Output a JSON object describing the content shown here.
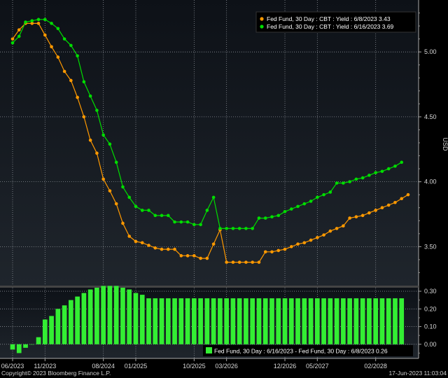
{
  "chart_data": [
    {
      "type": "line",
      "ylabel": "USD",
      "ylim": [
        3.2,
        5.4
      ],
      "yticks": [
        "5.00",
        "4.50",
        "4.00",
        "3.50"
      ],
      "grid": true,
      "legend_position": "top-right",
      "series": [
        {
          "name": "Fed Fund, 30 Day : CBT : Yield : 6/8/2023",
          "last_label": "3.43",
          "color": "#ff9900",
          "values": [
            5.1,
            5.17,
            5.22,
            5.22,
            5.22,
            5.13,
            5.04,
            4.96,
            4.85,
            4.78,
            4.65,
            4.5,
            4.32,
            4.22,
            4.02,
            3.93,
            3.83,
            3.68,
            3.58,
            3.54,
            3.53,
            3.51,
            3.49,
            3.48,
            3.48,
            3.48,
            3.43,
            3.43,
            3.43,
            3.41,
            3.41,
            3.52,
            3.63,
            3.38,
            3.38,
            3.38,
            3.38,
            3.38,
            3.38,
            3.46,
            3.46,
            3.47,
            3.48,
            3.5,
            3.52,
            3.53,
            3.55,
            3.57,
            3.59,
            3.62,
            3.64,
            3.66,
            3.72,
            3.73,
            3.74,
            3.76,
            3.78,
            3.8,
            3.82,
            3.84,
            3.87,
            3.9
          ]
        },
        {
          "name": "Fed Fund, 30 Day : CBT : Yield : 6/16/2023",
          "last_label": "3.69",
          "color": "#00dd00",
          "values": [
            5.07,
            5.12,
            5.23,
            5.24,
            5.25,
            5.25,
            5.22,
            5.18,
            5.1,
            5.05,
            4.97,
            4.77,
            4.66,
            4.55,
            4.36,
            4.29,
            4.15,
            3.96,
            3.88,
            3.81,
            3.78,
            3.78,
            3.74,
            3.74,
            3.74,
            3.69,
            3.69,
            3.69,
            3.67,
            3.67,
            3.78,
            3.88,
            3.64,
            3.64,
            3.64,
            3.64,
            3.64,
            3.64,
            3.72,
            3.72,
            3.73,
            3.74,
            3.77,
            3.79,
            3.81,
            3.83,
            3.85,
            3.88,
            3.9,
            3.92,
            3.99,
            3.99,
            4.0,
            4.02,
            4.03,
            4.05,
            4.07,
            4.08,
            4.1,
            4.12,
            4.15
          ]
        }
      ]
    },
    {
      "type": "bar",
      "ylim": [
        -0.08,
        0.32
      ],
      "yticks": [
        "0.30",
        "0.20",
        "0.10",
        "0.00"
      ],
      "grid": true,
      "legend_position": "bottom-right",
      "series": [
        {
          "name": "Fed Fund, 30 Day : 6/16/2023 - Fed Fund, 30 Day : 6/8/2023",
          "last_label": "0.26",
          "color": "#33ee33",
          "values": [
            -0.03,
            -0.05,
            -0.02,
            0.0,
            0.04,
            0.14,
            0.16,
            0.2,
            0.22,
            0.25,
            0.27,
            0.29,
            0.31,
            0.32,
            0.33,
            0.33,
            0.33,
            0.32,
            0.31,
            0.29,
            0.28,
            0.26,
            0.26,
            0.26,
            0.26,
            0.26,
            0.26,
            0.26,
            0.26,
            0.26,
            0.26,
            0.26,
            0.26,
            0.26,
            0.26,
            0.26,
            0.26,
            0.26,
            0.26,
            0.26,
            0.26,
            0.26,
            0.26,
            0.26,
            0.26,
            0.26,
            0.26,
            0.26,
            0.26,
            0.26,
            0.26,
            0.26,
            0.26,
            0.26,
            0.26,
            0.26,
            0.26,
            0.26,
            0.26,
            0.26,
            0.26
          ]
        }
      ]
    }
  ],
  "x_axis": {
    "tick_labels": [
      "06/2023",
      "11/2023",
      "08/2024",
      "01/2025",
      "10/2025",
      "03/2026",
      "12/2026",
      "05/2027",
      "02/2028"
    ],
    "tick_index": [
      0,
      5,
      14,
      19,
      28,
      33,
      42,
      47,
      56
    ]
  },
  "footer": {
    "copyright": "Copyright© 2023 Bloomberg Finance L.P.",
    "timestamp": "17-Jun-2023 11:03:04"
  }
}
